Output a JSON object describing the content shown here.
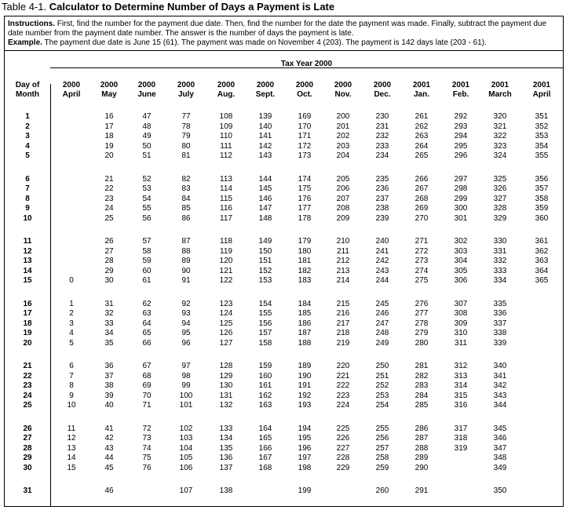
{
  "caption": {
    "label": "Table 4-1.",
    "title": "Calculator to Determine Number of Days a Payment is Late"
  },
  "instructions": {
    "label": "Instructions.",
    "text": "First, find the number for the payment due date. Then, find the number for the date the payment was made. Finally, subtract the payment due date number from the payment date number. The answer is the number of days the payment is late."
  },
  "example": {
    "label": "Example.",
    "text": "The payment due date is June 15 (61). The payment was made on November 4 (203). The payment is 142 days late (203 - 61)."
  },
  "table": {
    "banner": "Tax Year 2000",
    "headers": [
      [
        "Day of",
        "Month"
      ],
      [
        "2000",
        "April"
      ],
      [
        "2000",
        "May"
      ],
      [
        "2000",
        "June"
      ],
      [
        "2000",
        "July"
      ],
      [
        "2000",
        "Aug."
      ],
      [
        "2000",
        "Sept."
      ],
      [
        "2000",
        "Oct."
      ],
      [
        "2000",
        "Nov."
      ],
      [
        "2000",
        "Dec."
      ],
      [
        "2001",
        "Jan."
      ],
      [
        "2001",
        "Feb."
      ],
      [
        "2001",
        "March"
      ],
      [
        "2001",
        "April"
      ]
    ],
    "rows": [
      [
        1,
        null,
        16,
        47,
        77,
        108,
        139,
        169,
        200,
        230,
        261,
        292,
        320,
        351
      ],
      [
        2,
        null,
        17,
        48,
        78,
        109,
        140,
        170,
        201,
        231,
        262,
        293,
        321,
        352
      ],
      [
        3,
        null,
        18,
        49,
        79,
        110,
        141,
        171,
        202,
        232,
        263,
        294,
        322,
        353
      ],
      [
        4,
        null,
        19,
        50,
        80,
        111,
        142,
        172,
        203,
        233,
        264,
        295,
        323,
        354
      ],
      [
        5,
        null,
        20,
        51,
        81,
        112,
        143,
        173,
        204,
        234,
        265,
        296,
        324,
        355
      ],
      [
        6,
        null,
        21,
        52,
        82,
        113,
        144,
        174,
        205,
        235,
        266,
        297,
        325,
        356
      ],
      [
        7,
        null,
        22,
        53,
        83,
        114,
        145,
        175,
        206,
        236,
        267,
        298,
        326,
        357
      ],
      [
        8,
        null,
        23,
        54,
        84,
        115,
        146,
        176,
        207,
        237,
        268,
        299,
        327,
        358
      ],
      [
        9,
        null,
        24,
        55,
        85,
        116,
        147,
        177,
        208,
        238,
        269,
        300,
        328,
        359
      ],
      [
        10,
        null,
        25,
        56,
        86,
        117,
        148,
        178,
        209,
        239,
        270,
        301,
        329,
        360
      ],
      [
        11,
        null,
        26,
        57,
        87,
        118,
        149,
        179,
        210,
        240,
        271,
        302,
        330,
        361
      ],
      [
        12,
        null,
        27,
        58,
        88,
        119,
        150,
        180,
        211,
        241,
        272,
        303,
        331,
        362
      ],
      [
        13,
        null,
        28,
        59,
        89,
        120,
        151,
        181,
        212,
        242,
        273,
        304,
        332,
        363
      ],
      [
        14,
        null,
        29,
        60,
        90,
        121,
        152,
        182,
        213,
        243,
        274,
        305,
        333,
        364
      ],
      [
        15,
        0,
        30,
        61,
        91,
        122,
        153,
        183,
        214,
        244,
        275,
        306,
        334,
        365
      ],
      [
        16,
        1,
        31,
        62,
        92,
        123,
        154,
        184,
        215,
        245,
        276,
        307,
        335,
        null
      ],
      [
        17,
        2,
        32,
        63,
        93,
        124,
        155,
        185,
        216,
        246,
        277,
        308,
        336,
        null
      ],
      [
        18,
        3,
        33,
        64,
        94,
        125,
        156,
        186,
        217,
        247,
        278,
        309,
        337,
        null
      ],
      [
        19,
        4,
        34,
        65,
        95,
        126,
        157,
        187,
        218,
        248,
        279,
        310,
        338,
        null
      ],
      [
        20,
        5,
        35,
        66,
        96,
        127,
        158,
        188,
        219,
        249,
        280,
        311,
        339,
        null
      ],
      [
        21,
        6,
        36,
        67,
        97,
        128,
        159,
        189,
        220,
        250,
        281,
        312,
        340,
        null
      ],
      [
        22,
        7,
        37,
        68,
        98,
        129,
        160,
        190,
        221,
        251,
        282,
        313,
        341,
        null
      ],
      [
        23,
        8,
        38,
        69,
        99,
        130,
        161,
        191,
        222,
        252,
        283,
        314,
        342,
        null
      ],
      [
        24,
        9,
        39,
        70,
        100,
        131,
        162,
        192,
        223,
        253,
        284,
        315,
        343,
        null
      ],
      [
        25,
        10,
        40,
        71,
        101,
        132,
        163,
        193,
        224,
        254,
        285,
        316,
        344,
        null
      ],
      [
        26,
        11,
        41,
        72,
        102,
        133,
        164,
        194,
        225,
        255,
        286,
        317,
        345,
        null
      ],
      [
        27,
        12,
        42,
        73,
        103,
        134,
        165,
        195,
        226,
        256,
        287,
        318,
        346,
        null
      ],
      [
        28,
        13,
        43,
        74,
        104,
        135,
        166,
        196,
        227,
        257,
        288,
        319,
        347,
        null
      ],
      [
        29,
        14,
        44,
        75,
        105,
        136,
        167,
        197,
        228,
        258,
        289,
        null,
        348,
        null
      ],
      [
        30,
        15,
        45,
        76,
        106,
        137,
        168,
        198,
        229,
        259,
        290,
        null,
        349,
        null
      ],
      [
        31,
        null,
        46,
        null,
        107,
        138,
        null,
        199,
        null,
        260,
        291,
        null,
        350,
        null
      ]
    ]
  }
}
